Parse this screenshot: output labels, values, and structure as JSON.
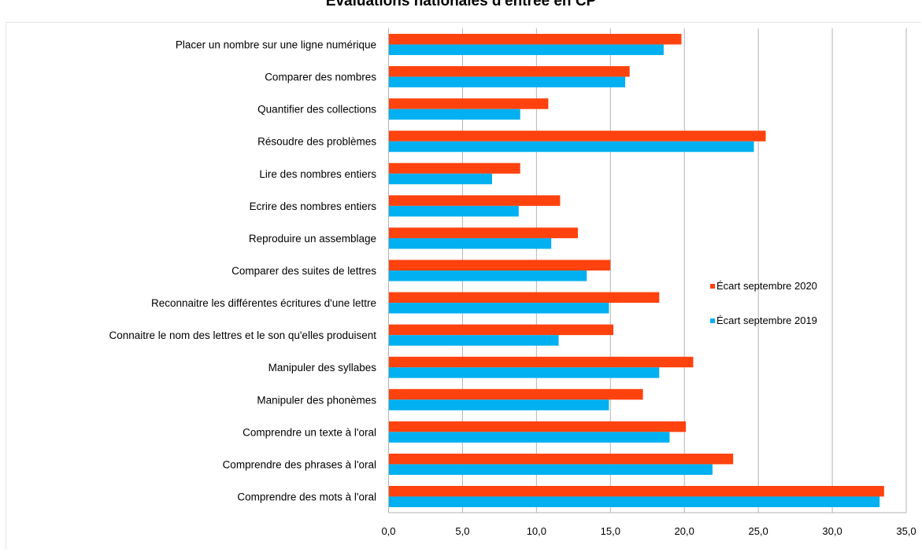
{
  "chart_data": {
    "type": "bar",
    "orientation": "horizontal",
    "title": "Évaluations nationales d'entrée en CP",
    "xlim": [
      0,
      35
    ],
    "x_ticks": [
      "0,0",
      "5,0",
      "10,0",
      "15,0",
      "20,0",
      "25,0",
      "30,0",
      "35,0"
    ],
    "grid": "vertical",
    "legend_position": "right",
    "categories": [
      "Placer un nombre sur une ligne numérique",
      "Comparer des nombres",
      "Quantifier des collections",
      "Résoudre des problèmes",
      "Lire des nombres entiers",
      "Ecrire des nombres entiers",
      "Reproduire un assemblage",
      "Comparer des suites de lettres",
      "Reconnaitre les différentes écritures d'une lettre",
      "Connaitre le nom des lettres et le son qu'elles produisent",
      "Manipuler des syllabes",
      "Manipuler des phonèmes",
      "Comprendre un texte à l'oral",
      "Comprendre des phrases à l'oral",
      "Comprendre des mots à l'oral"
    ],
    "series": [
      {
        "name": "Écart septembre 2020",
        "color": "#ff420e",
        "values": [
          19.8,
          16.3,
          10.8,
          25.5,
          8.9,
          11.6,
          12.8,
          15.0,
          18.3,
          15.2,
          20.6,
          17.2,
          20.1,
          23.3,
          33.5
        ]
      },
      {
        "name": "Écart septembre 2019",
        "color": "#00b0f0",
        "values": [
          18.6,
          16.0,
          8.9,
          24.7,
          7.0,
          8.8,
          11.0,
          13.4,
          14.9,
          11.5,
          18.3,
          14.9,
          19.0,
          21.9,
          33.2
        ]
      }
    ]
  }
}
